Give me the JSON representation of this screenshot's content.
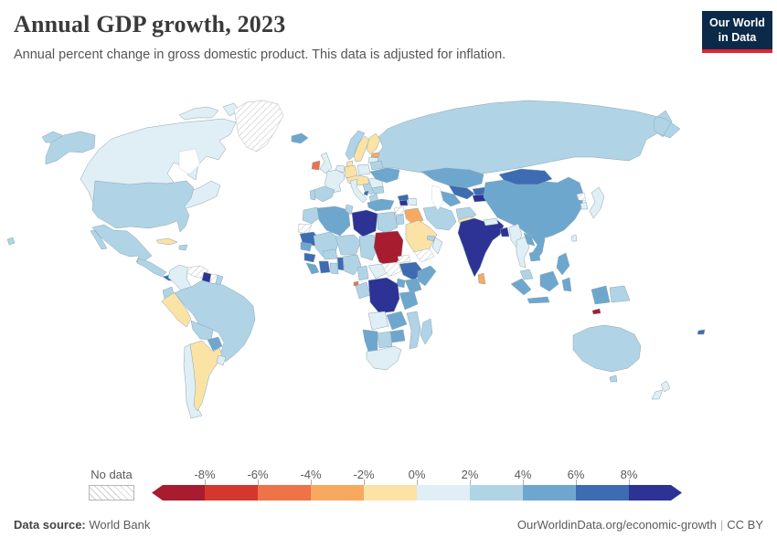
{
  "header": {
    "title": "Annual GDP growth, 2023",
    "subtitle": "Annual percent change in gross domestic product. This data is adjusted for inflation.",
    "logo": {
      "line1": "Our World",
      "line2": "in Data",
      "bg": "#0b2948",
      "accent": "#e0232d"
    }
  },
  "legend": {
    "no_data_label": "No data",
    "ticks": [
      "-8%",
      "-6%",
      "-4%",
      "-2%",
      "0%",
      "2%",
      "4%",
      "6%",
      "8%"
    ]
  },
  "footer": {
    "source_label": "Data source:",
    "source_value": "World Bank",
    "link": "OurWorldinData.org/economic-growth",
    "license": "CC BY"
  },
  "chart_data": {
    "type": "choropleth_map",
    "title": "Annual GDP growth, 2023",
    "unit": "%",
    "no_data_label": "No data",
    "buckets": [
      {
        "label": "< -8%",
        "color": "#a81c30"
      },
      {
        "label": "-8% to -6%",
        "color": "#d4382d"
      },
      {
        "label": "-6% to -4%",
        "color": "#ee7348"
      },
      {
        "label": "-4% to -2%",
        "color": "#f9a95f"
      },
      {
        "label": "-2% to 0%",
        "color": "#fbe3a5"
      },
      {
        "label": "0% to 2%",
        "color": "#e0eef5"
      },
      {
        "label": "2% to 4%",
        "color": "#b0d4e6"
      },
      {
        "label": "4% to 6%",
        "color": "#6ea7ce"
      },
      {
        "label": "6% to 8%",
        "color": "#3d6cb2"
      },
      {
        "label": "> 8%",
        "color": "#2c3395"
      }
    ],
    "regions": [
      {
        "name": "Russia",
        "bucket": "2% to 4%"
      },
      {
        "name": "Canada",
        "bucket": "0% to 2%"
      },
      {
        "name": "United States",
        "bucket": "2% to 4%"
      },
      {
        "name": "Greenland",
        "bucket": "No data"
      },
      {
        "name": "Mexico",
        "bucket": "2% to 4%"
      },
      {
        "name": "Guatemala",
        "bucket": "2% to 4%"
      },
      {
        "name": "Panama",
        "bucket": "6% to 8%"
      },
      {
        "name": "Cuba",
        "bucket": "-2% to 0%"
      },
      {
        "name": "Dominican Republic",
        "bucket": "2% to 4%"
      },
      {
        "name": "Colombia",
        "bucket": "0% to 2%"
      },
      {
        "name": "Venezuela",
        "bucket": "No data"
      },
      {
        "name": "Guyana",
        "bucket": "> 8%"
      },
      {
        "name": "Suriname",
        "bucket": "No data"
      },
      {
        "name": "French Guiana",
        "bucket": "2% to 4%"
      },
      {
        "name": "Ecuador",
        "bucket": "2% to 4%"
      },
      {
        "name": "Peru",
        "bucket": "-2% to 0%"
      },
      {
        "name": "Brazil",
        "bucket": "2% to 4%"
      },
      {
        "name": "Bolivia",
        "bucket": "2% to 4%"
      },
      {
        "name": "Paraguay",
        "bucket": "4% to 6%"
      },
      {
        "name": "Chile",
        "bucket": "0% to 2%"
      },
      {
        "name": "Argentina",
        "bucket": "-2% to 0%"
      },
      {
        "name": "Uruguay",
        "bucket": "0% to 2%"
      },
      {
        "name": "Iceland",
        "bucket": "4% to 6%"
      },
      {
        "name": "Ireland",
        "bucket": "-6% to -4%"
      },
      {
        "name": "United Kingdom",
        "bucket": "0% to 2%"
      },
      {
        "name": "Norway",
        "bucket": "2% to 4%"
      },
      {
        "name": "Sweden",
        "bucket": "-2% to 0%"
      },
      {
        "name": "Finland",
        "bucket": "-2% to 0%"
      },
      {
        "name": "Estonia",
        "bucket": "-4% to -2%"
      },
      {
        "name": "Latvia",
        "bucket": "0% to 2%"
      },
      {
        "name": "Denmark",
        "bucket": "-2% to 0%"
      },
      {
        "name": "Netherlands",
        "bucket": "0% to 2%"
      },
      {
        "name": "Germany",
        "bucket": "-2% to 0%"
      },
      {
        "name": "Poland",
        "bucket": "0% to 2%"
      },
      {
        "name": "Czechia",
        "bucket": "-2% to 0%"
      },
      {
        "name": "France",
        "bucket": "0% to 2%"
      },
      {
        "name": "Spain",
        "bucket": "2% to 4%"
      },
      {
        "name": "Portugal",
        "bucket": "2% to 4%"
      },
      {
        "name": "Italy",
        "bucket": "0% to 2%"
      },
      {
        "name": "Serbia",
        "bucket": "2% to 4%"
      },
      {
        "name": "Montenegro",
        "bucket": "6% to 8%"
      },
      {
        "name": "Greece",
        "bucket": "2% to 4%"
      },
      {
        "name": "Romania",
        "bucket": "0% to 2%"
      },
      {
        "name": "Bulgaria",
        "bucket": "2% to 4%"
      },
      {
        "name": "Ukraine",
        "bucket": "4% to 6%"
      },
      {
        "name": "Belarus",
        "bucket": "2% to 4%"
      },
      {
        "name": "Turkey",
        "bucket": "4% to 6%"
      },
      {
        "name": "Kazakhstan",
        "bucket": "4% to 6%"
      },
      {
        "name": "Uzbekistan",
        "bucket": "6% to 8%"
      },
      {
        "name": "Turkmenistan",
        "bucket": "4% to 6%"
      },
      {
        "name": "Kyrgyzstan",
        "bucket": "6% to 8%"
      },
      {
        "name": "Tajikistan",
        "bucket": "> 8%"
      },
      {
        "name": "Georgia",
        "bucket": "6% to 8%"
      },
      {
        "name": "Armenia",
        "bucket": "> 8%"
      },
      {
        "name": "Azerbaijan",
        "bucket": "0% to 2%"
      },
      {
        "name": "Syria",
        "bucket": "No data"
      },
      {
        "name": "Lebanon",
        "bucket": "-4% to -2%"
      },
      {
        "name": "Israel",
        "bucket": "2% to 4%"
      },
      {
        "name": "Iraq",
        "bucket": "-4% to -2%"
      },
      {
        "name": "Iran",
        "bucket": "2% to 4%"
      },
      {
        "name": "Kuwait",
        "bucket": "-4% to -2%"
      },
      {
        "name": "Saudi Arabia",
        "bucket": "-2% to 0%"
      },
      {
        "name": "Yemen",
        "bucket": "No data"
      },
      {
        "name": "Oman",
        "bucket": "0% to 2%"
      },
      {
        "name": "United Arab Emirates",
        "bucket": "2% to 4%"
      },
      {
        "name": "Afghanistan",
        "bucket": "2% to 4%"
      },
      {
        "name": "Pakistan",
        "bucket": "-2% to 0%"
      },
      {
        "name": "Morocco",
        "bucket": "2% to 4%"
      },
      {
        "name": "Western Sahara",
        "bucket": "No data"
      },
      {
        "name": "Mauritania",
        "bucket": "6% to 8%"
      },
      {
        "name": "Algeria",
        "bucket": "4% to 6%"
      },
      {
        "name": "Tunisia",
        "bucket": "2% to 4%"
      },
      {
        "name": "Libya",
        "bucket": "> 8%"
      },
      {
        "name": "Egypt",
        "bucket": "2% to 4%"
      },
      {
        "name": "Mali",
        "bucket": "2% to 4%"
      },
      {
        "name": "Niger",
        "bucket": "2% to 4%"
      },
      {
        "name": "Chad",
        "bucket": "2% to 4%"
      },
      {
        "name": "Sudan",
        "bucket": "< -8%"
      },
      {
        "name": "Eritrea",
        "bucket": "No data"
      },
      {
        "name": "Senegal",
        "bucket": "4% to 6%"
      },
      {
        "name": "Guinea",
        "bucket": "6% to 8%"
      },
      {
        "name": "Sierra Leone",
        "bucket": "4% to 6%"
      },
      {
        "name": "Cote d'Ivoire",
        "bucket": "6% to 8%"
      },
      {
        "name": "Ghana",
        "bucket": "2% to 4%"
      },
      {
        "name": "Burkina Faso",
        "bucket": "2% to 4%"
      },
      {
        "name": "Benin",
        "bucket": "6% to 8%"
      },
      {
        "name": "Nigeria",
        "bucket": "2% to 4%"
      },
      {
        "name": "Cameroon",
        "bucket": "2% to 4%"
      },
      {
        "name": "Equatorial Guinea",
        "bucket": "-6% to -4%"
      },
      {
        "name": "Gabon",
        "bucket": "2% to 4%"
      },
      {
        "name": "Central African Republic",
        "bucket": "0% to 2%"
      },
      {
        "name": "South Sudan",
        "bucket": "No data"
      },
      {
        "name": "Ethiopia",
        "bucket": "6% to 8%"
      },
      {
        "name": "Somalia",
        "bucket": "4% to 6%"
      },
      {
        "name": "Kenya",
        "bucket": "4% to 6%"
      },
      {
        "name": "Uganda",
        "bucket": "4% to 6%"
      },
      {
        "name": "Democratic Republic of Congo",
        "bucket": "> 8%"
      },
      {
        "name": "Tanzania",
        "bucket": "4% to 6%"
      },
      {
        "name": "Angola",
        "bucket": "0% to 2%"
      },
      {
        "name": "Zambia",
        "bucket": "4% to 6%"
      },
      {
        "name": "Mozambique",
        "bucket": "2% to 4%"
      },
      {
        "name": "Zimbabwe",
        "bucket": "4% to 6%"
      },
      {
        "name": "Botswana",
        "bucket": "2% to 4%"
      },
      {
        "name": "Namibia",
        "bucket": "4% to 6%"
      },
      {
        "name": "South Africa",
        "bucket": "0% to 2%"
      },
      {
        "name": "Madagascar",
        "bucket": "2% to 4%"
      },
      {
        "name": "China",
        "bucket": "4% to 6%"
      },
      {
        "name": "Mongolia",
        "bucket": "6% to 8%"
      },
      {
        "name": "India",
        "bucket": "> 8%"
      },
      {
        "name": "Nepal",
        "bucket": "0% to 2%"
      },
      {
        "name": "Bangladesh",
        "bucket": "> 8%"
      },
      {
        "name": "Myanmar",
        "bucket": "0% to 2%"
      },
      {
        "name": "Thailand",
        "bucket": "0% to 2%"
      },
      {
        "name": "Laos",
        "bucket": "4% to 6%"
      },
      {
        "name": "Vietnam",
        "bucket": "4% to 6%"
      },
      {
        "name": "Cambodia",
        "bucket": "4% to 6%"
      },
      {
        "name": "Malaysia",
        "bucket": "2% to 4%"
      },
      {
        "name": "Sri Lanka",
        "bucket": "-4% to -2%"
      },
      {
        "name": "Indonesia",
        "bucket": "4% to 6%"
      },
      {
        "name": "Philippines",
        "bucket": "4% to 6%"
      },
      {
        "name": "Papua New Guinea",
        "bucket": "2% to 4%"
      },
      {
        "name": "Timor-Leste",
        "bucket": "< -8%"
      },
      {
        "name": "Taiwan",
        "bucket": "0% to 2%"
      },
      {
        "name": "Japan",
        "bucket": "0% to 2%"
      },
      {
        "name": "South Korea",
        "bucket": "0% to 2%"
      },
      {
        "name": "North Korea",
        "bucket": "No data"
      },
      {
        "name": "Australia",
        "bucket": "2% to 4%"
      },
      {
        "name": "New Zealand",
        "bucket": "0% to 2%"
      },
      {
        "name": "Fiji",
        "bucket": "6% to 8%"
      }
    ]
  }
}
